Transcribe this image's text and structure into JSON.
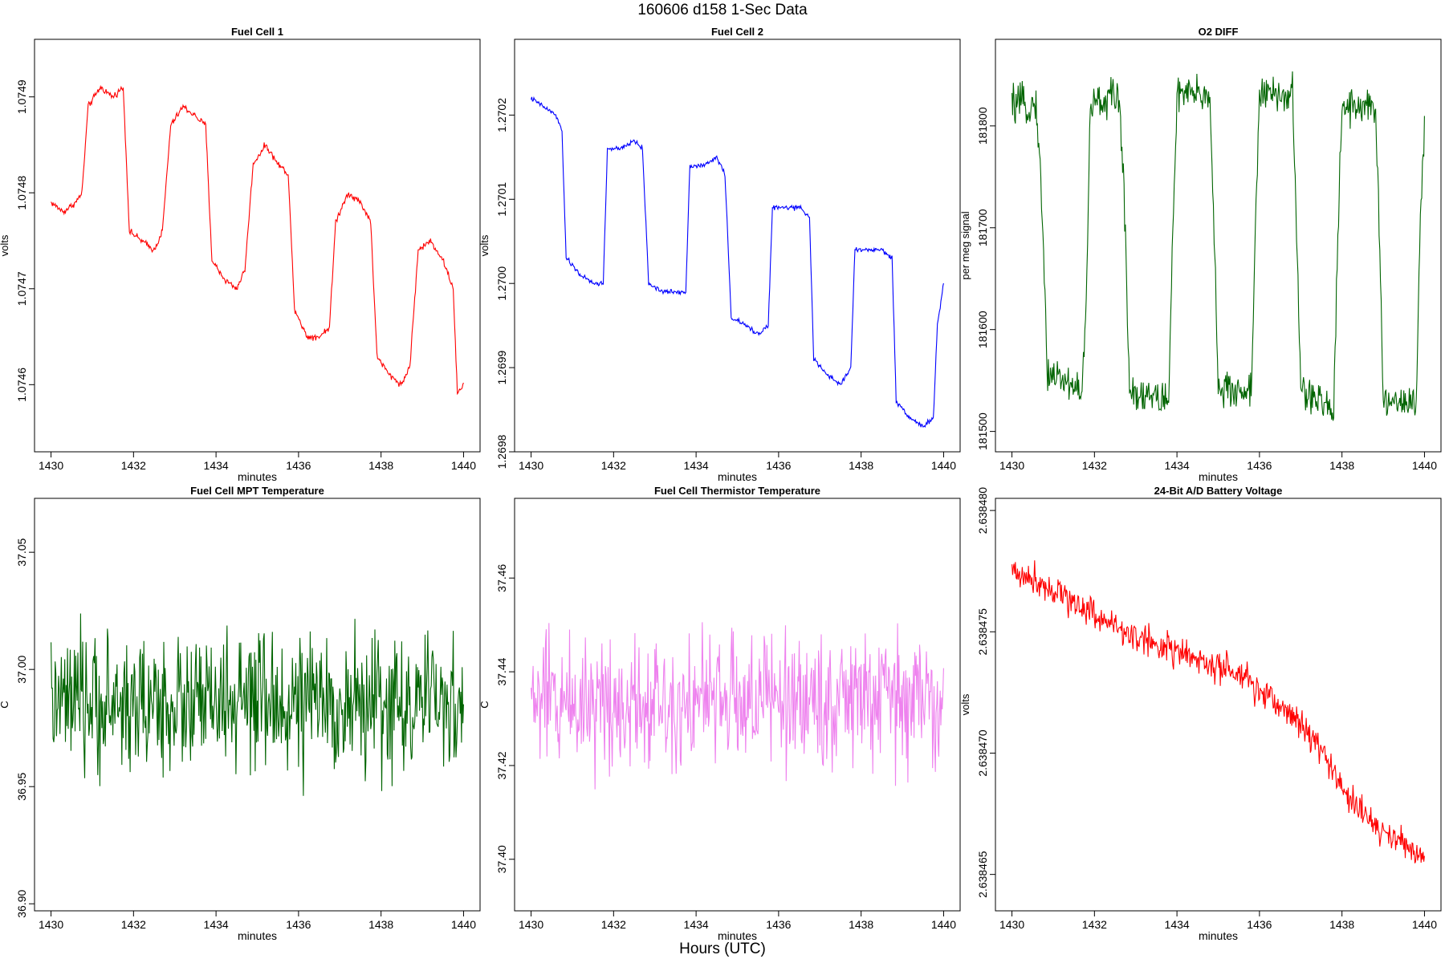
{
  "figure": {
    "title": "160606   d158   1-Sec Data",
    "xlabel": "Hours (UTC)"
  },
  "chart_data": [
    {
      "type": "line",
      "title": "Fuel Cell 1",
      "xlabel": "minutes",
      "ylabel": "volts",
      "color": "#ff0000",
      "xlim": [
        1429.6,
        1440.4
      ],
      "ylim": [
        1.07453,
        1.07496
      ],
      "xticks": [
        1430,
        1432,
        1434,
        1436,
        1438,
        1440
      ],
      "xtick_labels": [
        "1430",
        "1432",
        "1434",
        "1436",
        "1438",
        "1440"
      ],
      "yticks": [
        1.0746,
        1.0747,
        1.0748,
        1.0749
      ],
      "ytick_labels": [
        "1.0746",
        "1.0747",
        "1.0748",
        "1.0749"
      ],
      "x": [
        1430.0,
        1430.3,
        1430.6,
        1430.75,
        1430.9,
        1431.2,
        1431.5,
        1431.75,
        1431.9,
        1432.2,
        1432.5,
        1432.7,
        1432.9,
        1433.2,
        1433.5,
        1433.75,
        1433.9,
        1434.2,
        1434.5,
        1434.7,
        1434.9,
        1435.2,
        1435.5,
        1435.75,
        1435.9,
        1436.2,
        1436.5,
        1436.75,
        1436.9,
        1437.2,
        1437.5,
        1437.75,
        1437.9,
        1438.2,
        1438.5,
        1438.7,
        1438.9,
        1439.2,
        1439.5,
        1439.75,
        1439.85,
        1440.0
      ],
      "values": [
        1.07479,
        1.07478,
        1.07479,
        1.0748,
        1.07489,
        1.07491,
        1.0749,
        1.07491,
        1.07476,
        1.07475,
        1.07474,
        1.07476,
        1.07487,
        1.07489,
        1.07488,
        1.07487,
        1.07473,
        1.07471,
        1.0747,
        1.07472,
        1.07483,
        1.07485,
        1.07483,
        1.07482,
        1.07468,
        1.07465,
        1.07465,
        1.07466,
        1.07477,
        1.0748,
        1.07479,
        1.07477,
        1.07463,
        1.07461,
        1.0746,
        1.07462,
        1.07474,
        1.07475,
        1.07473,
        1.0747,
        1.07459,
        1.0746
      ],
      "noise": 2.5e-06
    },
    {
      "type": "line",
      "title": "Fuel Cell 2",
      "xlabel": "minutes",
      "ylabel": "volts",
      "color": "#0000ff",
      "xlim": [
        1429.6,
        1440.4
      ],
      "ylim": [
        1.2698,
        1.27029
      ],
      "xticks": [
        1430,
        1432,
        1434,
        1436,
        1438,
        1440
      ],
      "xtick_labels": [
        "1430",
        "1432",
        "1434",
        "1436",
        "1438",
        "1440"
      ],
      "yticks": [
        1.2698,
        1.2699,
        1.27,
        1.2701,
        1.2702
      ],
      "ytick_labels": [
        "1.2698",
        "1.2699",
        "1.2700",
        "1.2701",
        "1.2702"
      ],
      "x": [
        1430.0,
        1430.3,
        1430.6,
        1430.75,
        1430.85,
        1431.2,
        1431.5,
        1431.75,
        1431.85,
        1432.2,
        1432.5,
        1432.7,
        1432.85,
        1433.2,
        1433.5,
        1433.75,
        1433.85,
        1434.2,
        1434.5,
        1434.7,
        1434.85,
        1435.2,
        1435.5,
        1435.75,
        1435.85,
        1436.2,
        1436.5,
        1436.75,
        1436.85,
        1437.2,
        1437.5,
        1437.75,
        1437.85,
        1438.2,
        1438.5,
        1438.75,
        1438.85,
        1439.2,
        1439.5,
        1439.75,
        1439.85,
        1440.0
      ],
      "values": [
        1.27022,
        1.27021,
        1.2702,
        1.27018,
        1.27003,
        1.27001,
        1.27,
        1.27,
        1.27016,
        1.27016,
        1.27017,
        1.27016,
        1.27,
        1.26999,
        1.26999,
        1.26999,
        1.27014,
        1.27014,
        1.27015,
        1.27013,
        1.26996,
        1.26995,
        1.26994,
        1.26995,
        1.27009,
        1.27009,
        1.27009,
        1.27008,
        1.26991,
        1.26989,
        1.26988,
        1.2699,
        1.27004,
        1.27004,
        1.27004,
        1.27003,
        1.26986,
        1.26984,
        1.26983,
        1.26984,
        1.26995,
        1.27
      ],
      "noise": 2.2e-06
    },
    {
      "type": "line",
      "title": "O2 DIFF",
      "xlabel": "minutes",
      "ylabel": "per meg signal",
      "color": "#006400",
      "xlim": [
        1429.6,
        1440.4
      ],
      "ylim": [
        181480,
        181885
      ],
      "xticks": [
        1430,
        1432,
        1434,
        1436,
        1438,
        1440
      ],
      "xtick_labels": [
        "1430",
        "1432",
        "1434",
        "1436",
        "1438",
        "1440"
      ],
      "yticks": [
        181500,
        181600,
        181700,
        181800
      ],
      "ytick_labels": [
        "181500",
        "181600",
        "181700",
        "181800"
      ],
      "x": [
        1430.0,
        1430.6,
        1430.75,
        1430.85,
        1431.7,
        1431.8,
        1431.9,
        1432.6,
        1432.75,
        1432.85,
        1433.8,
        1433.9,
        1434.0,
        1434.8,
        1434.9,
        1435.0,
        1435.8,
        1435.9,
        1436.0,
        1436.8,
        1436.9,
        1437.0,
        1437.8,
        1437.9,
        1438.0,
        1438.8,
        1438.9,
        1439.0,
        1439.8,
        1439.9,
        1440.0
      ],
      "values": [
        181820,
        181820,
        181700,
        181560,
        181540,
        181620,
        181820,
        181830,
        181700,
        181540,
        181530,
        181700,
        181830,
        181830,
        181700,
        181540,
        181540,
        181700,
        181830,
        181830,
        181700,
        181540,
        181520,
        181700,
        181820,
        181820,
        181700,
        181530,
        181530,
        181700,
        181800
      ],
      "noise": 14
    },
    {
      "type": "line",
      "title": "Fuel Cell MPT Temperature",
      "xlabel": "minutes",
      "ylabel": "C",
      "color": "#006400",
      "xlim": [
        1429.6,
        1440.4
      ],
      "ylim": [
        36.897,
        37.073
      ],
      "xticks": [
        1430,
        1432,
        1434,
        1436,
        1438,
        1440
      ],
      "xtick_labels": [
        "1430",
        "1432",
        "1434",
        "1436",
        "1438",
        "1440"
      ],
      "yticks": [
        36.9,
        36.95,
        37.0,
        37.05
      ],
      "ytick_labels": [
        "36.90",
        "36.95",
        "37.00",
        "37.05"
      ],
      "x": [
        1430.0,
        1440.0
      ],
      "values": [
        36.985,
        36.985
      ],
      "noise": 0.022
    },
    {
      "type": "line",
      "title": "Fuel Cell Thermistor Temperature",
      "xlabel": "minutes",
      "ylabel": "C",
      "color": "#ee82ee",
      "xlim": [
        1429.6,
        1440.4
      ],
      "ylim": [
        37.389,
        37.477
      ],
      "xticks": [
        1430,
        1432,
        1434,
        1436,
        1438,
        1440
      ],
      "xtick_labels": [
        "1430",
        "1432",
        "1434",
        "1436",
        "1438",
        "1440"
      ],
      "yticks": [
        37.4,
        37.42,
        37.44,
        37.46
      ],
      "ytick_labels": [
        "37.40",
        "37.42",
        "37.44",
        "37.46"
      ],
      "x": [
        1430.0,
        1440.0
      ],
      "values": [
        37.434,
        37.434
      ],
      "noise": 0.011
    },
    {
      "type": "line",
      "title": "24-Bit A/D Battery Voltage",
      "xlabel": "minutes",
      "ylabel": "volts",
      "color": "#ff0000",
      "xlim": [
        1429.6,
        1440.4
      ],
      "ylim": [
        2.6384635,
        2.6384805
      ],
      "xticks": [
        1430,
        1432,
        1434,
        1436,
        1438,
        1440
      ],
      "xtick_labels": [
        "1430",
        "1432",
        "1434",
        "1436",
        "1438",
        "1440"
      ],
      "yticks": [
        2.638465,
        2.63847,
        2.638475,
        2.63848
      ],
      "ytick_labels": [
        "2.638465",
        "2.638470",
        "2.638475",
        "2.638480"
      ],
      "x": [
        1430.0,
        1430.5,
        1431.0,
        1431.5,
        1432.0,
        1432.5,
        1433.0,
        1433.5,
        1434.0,
        1434.5,
        1435.0,
        1435.5,
        1436.0,
        1436.5,
        1437.0,
        1437.5,
        1438.0,
        1438.5,
        1439.0,
        1439.5,
        1440.0
      ],
      "values": [
        2.6384775,
        2.6384772,
        2.6384768,
        2.6384762,
        2.6384758,
        2.6384752,
        2.6384748,
        2.6384745,
        2.6384742,
        2.6384738,
        2.6384735,
        2.6384732,
        2.6384725,
        2.638472,
        2.6384712,
        2.6384702,
        2.6384685,
        2.6384675,
        2.6384668,
        2.6384662,
        2.6384658
      ],
      "noise": 5e-07
    }
  ]
}
